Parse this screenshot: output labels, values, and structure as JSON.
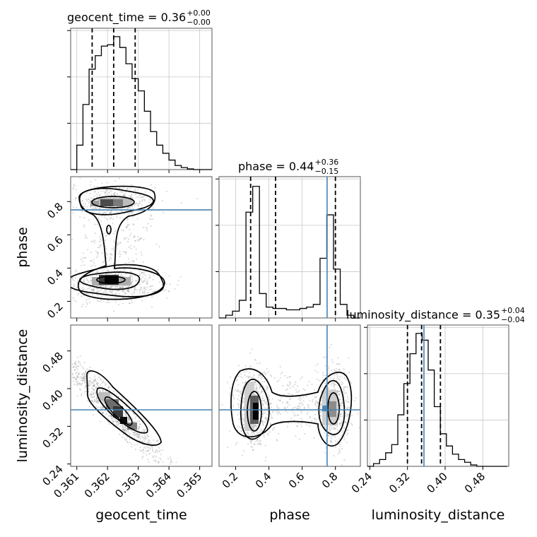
{
  "chart_data": {
    "type": "corner",
    "parameters": [
      "geocent_time",
      "phase",
      "luminosity_distance"
    ],
    "panel_titles": [
      {
        "parameter": "geocent_time",
        "label": "geocent_time = 0.36",
        "plus": "+0.00",
        "minus": "−0.00"
      },
      {
        "parameter": "phase",
        "label": "phase = 0.44",
        "plus": "+0.36",
        "minus": "−0.15"
      },
      {
        "parameter": "luminosity_distance",
        "label": "luminosity_distance = 0.35",
        "plus": "+0.04",
        "minus": "−0.04"
      }
    ],
    "axes": {
      "geocent_time": {
        "range": [
          0.3608,
          0.3654
        ],
        "ticks": [
          "0.361",
          "0.362",
          "0.363",
          "0.364",
          "0.365"
        ],
        "tick_values": [
          0.361,
          0.362,
          0.363,
          0.364,
          0.365
        ]
      },
      "phase": {
        "range": [
          0.1,
          0.95
        ],
        "ticks": [
          "0.2",
          "0.4",
          "0.6",
          "0.8"
        ],
        "tick_values": [
          0.2,
          0.4,
          0.6,
          0.8
        ]
      },
      "luminosity_distance": {
        "range": [
          0.235,
          0.535
        ],
        "ticks": [
          "0.24",
          "0.32",
          "0.40",
          "0.48"
        ],
        "tick_values": [
          0.24,
          0.32,
          0.4,
          0.48
        ]
      }
    },
    "truth": {
      "phase": 0.75,
      "luminosity_distance": 0.355
    },
    "quantiles": {
      "geocent_time": [
        0.3615,
        0.3622,
        0.3629
      ],
      "phase": [
        0.29,
        0.44,
        0.8
      ],
      "luminosity_distance": [
        0.32,
        0.35,
        0.39
      ]
    },
    "histograms": {
      "geocent_time": {
        "bin_start": 0.3608,
        "bin_width": 0.0002,
        "counts": [
          0,
          0.18,
          0.48,
          0.74,
          0.84,
          0.91,
          0.92,
          0.98,
          0.9,
          0.78,
          0.67,
          0.58,
          0.43,
          0.28,
          0.18,
          0.12,
          0.07,
          0.03,
          0.015,
          0.005,
          0,
          0,
          0
        ]
      },
      "phase": {
        "bin_start": 0.1,
        "bin_width": 0.0405,
        "counts": [
          0,
          0.02,
          0.05,
          0.13,
          0.78,
          0.97,
          0.18,
          0.08,
          0.07,
          0.07,
          0.06,
          0.06,
          0.07,
          0.08,
          0.1,
          0.44,
          0.76,
          0.36,
          0.1,
          0.02,
          0,
          0
        ]
      },
      "luminosity_distance": {
        "bin_start": 0.235,
        "bin_width": 0.0129,
        "counts": [
          0,
          0.02,
          0.05,
          0.1,
          0.16,
          0.38,
          0.61,
          0.83,
          0.98,
          0.93,
          0.71,
          0.44,
          0.24,
          0.15,
          0.09,
          0.05,
          0.03,
          0.01,
          0,
          0,
          0,
          0,
          0
        ]
      }
    },
    "grid": true,
    "colors": {
      "truth": "#4682b4",
      "hist": "#000000",
      "quantile": "#000000",
      "grid": "#c8c8c8",
      "density": "#000000"
    }
  }
}
